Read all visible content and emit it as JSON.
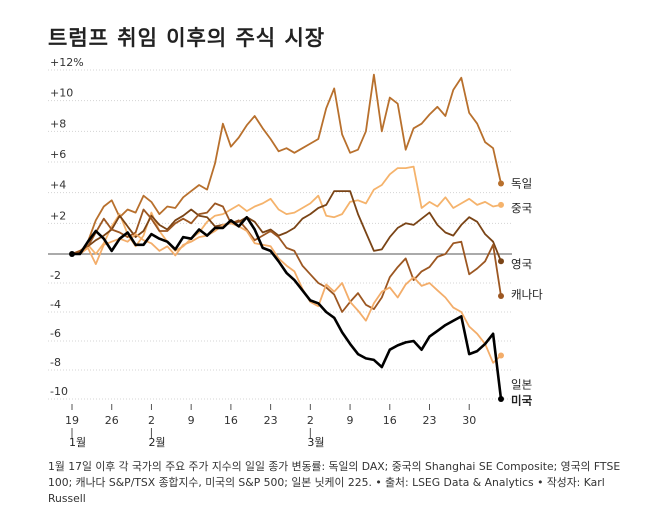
{
  "title": "트럼프 취임 이후의 주식 시장",
  "notes": "1월 17일 이후 각 국가의 주요 주가 지수의 일일 종가 변동률: 독일의 DAX; 중국의 Shanghai SE Composite; 영국의 FTSE 100; 캐나다 S&P/TSX 종합지수, 미국의 S&P 500; 일본 닛케이 225. • 출처: LSEG Data & Analytics • 작성자: Karl Russell",
  "chart_data": {
    "type": "line",
    "title": "트럼프 취임 이후의 주식 시장",
    "ylim": [
      -10,
      12
    ],
    "y_ticks": [
      {
        "v": 12,
        "label": "+12%"
      },
      {
        "v": 10,
        "label": "+10"
      },
      {
        "v": 8,
        "label": "+8"
      },
      {
        "v": 6,
        "label": "+6"
      },
      {
        "v": 4,
        "label": "+4"
      },
      {
        "v": 2,
        "label": "+2"
      },
      {
        "v": 0,
        "label": ""
      },
      {
        "v": -2,
        "label": "-2"
      },
      {
        "v": -4,
        "label": "-4"
      },
      {
        "v": -6,
        "label": "-6"
      },
      {
        "v": -8,
        "label": "-8"
      },
      {
        "v": -10,
        "label": "-10"
      }
    ],
    "x_ticks": [
      {
        "i": 0,
        "label": "19"
      },
      {
        "i": 5,
        "label": "26"
      },
      {
        "i": 10,
        "label": "2"
      },
      {
        "i": 15,
        "label": "9"
      },
      {
        "i": 20,
        "label": "16"
      },
      {
        "i": 25,
        "label": "23"
      },
      {
        "i": 30,
        "label": "2"
      },
      {
        "i": 35,
        "label": "9"
      },
      {
        "i": 40,
        "label": "16"
      },
      {
        "i": 45,
        "label": "23"
      },
      {
        "i": 50,
        "label": "30"
      }
    ],
    "month_labels": [
      {
        "i": 0,
        "label": "1월"
      },
      {
        "i": 10,
        "label": "2월"
      },
      {
        "i": 30,
        "label": "3월"
      }
    ],
    "x_count": 55,
    "series": [
      {
        "name": "독일",
        "color": "#b8702d",
        "end_value": 4.6,
        "values": [
          0,
          0,
          0.8,
          2.2,
          3.1,
          3.5,
          2.4,
          2.9,
          2.7,
          3.8,
          3.4,
          2.6,
          3.1,
          3.0,
          3.7,
          4.1,
          4.5,
          4.2,
          5.9,
          8.5,
          7.0,
          7.6,
          8.4,
          9.0,
          8.2,
          7.5,
          6.7,
          6.9,
          6.6,
          6.9,
          7.2,
          7.5,
          9.5,
          10.8,
          7.8,
          6.6,
          6.8,
          8.0,
          11.7,
          8.0,
          10.2,
          9.8,
          6.8,
          8.2,
          8.5,
          9.1,
          9.6,
          9.0,
          10.7,
          11.5,
          9.2,
          8.5,
          7.3,
          6.9,
          4.6
        ]
      },
      {
        "name": "중국",
        "color": "#f5b36c",
        "end_value": 3.2,
        "values": [
          0,
          0.2,
          0.6,
          0,
          0.7,
          1.8,
          2.6,
          1.3,
          0.5,
          1.2,
          2.7,
          1.5,
          0.8,
          0.2,
          0.5,
          1.0,
          1.4,
          2.1,
          2.5,
          2.6,
          2.9,
          3.2,
          2.8,
          3.1,
          3.3,
          3.6,
          2.9,
          2.6,
          2.7,
          3.0,
          3.3,
          3.8,
          2.5,
          2.4,
          2.6,
          3.4,
          3.5,
          3.3,
          4.2,
          4.5,
          5.2,
          5.6,
          5.6,
          5.7,
          3.0,
          3.4,
          3.1,
          3.7,
          3.0,
          3.3,
          3.6,
          3.2,
          3.4,
          3.1,
          3.2
        ]
      },
      {
        "name": "영국",
        "color": "#7a4416",
        "end_value": -0.5,
        "values": [
          0,
          0.1,
          0.5,
          0.9,
          1.2,
          1.6,
          2.5,
          1.8,
          1.1,
          1.5,
          2.5,
          1.9,
          1.6,
          2.2,
          2.5,
          2.9,
          2.5,
          2.4,
          1.8,
          1.9,
          2.0,
          2.1,
          2.4,
          2.1,
          1.4,
          1.6,
          1.2,
          1.4,
          1.7,
          2.3,
          2.6,
          3.0,
          3.2,
          4.1,
          4.1,
          4.1,
          2.6,
          1.4,
          0.2,
          0.3,
          1.1,
          1.7,
          2.0,
          1.9,
          2.3,
          2.7,
          1.9,
          1.4,
          1.2,
          1.9,
          2.4,
          2.1,
          1.3,
          0.8,
          -0.5
        ]
      },
      {
        "name": "캐나다",
        "color": "#9c5722",
        "end_value": -2.9,
        "values": [
          0,
          0.2,
          0.5,
          1.4,
          2.3,
          1.6,
          1.4,
          1.1,
          1.4,
          2.9,
          2.3,
          1.5,
          1.5,
          2.0,
          2.3,
          2.0,
          2.6,
          2.7,
          3.3,
          3.1,
          2.0,
          2.2,
          1.6,
          0.9,
          1.2,
          1.5,
          1.1,
          0.4,
          0.2,
          -0.8,
          -1.4,
          -2.0,
          -2.3,
          -2.8,
          -4.0,
          -3.3,
          -2.7,
          -3.5,
          -3.8,
          -3.0,
          -1.6,
          -0.9,
          -0.3,
          -1.8,
          -1.2,
          -0.9,
          -0.2,
          0,
          0.7,
          0.8,
          -1.4,
          -1.0,
          -0.5,
          0.6,
          -2.9
        ]
      },
      {
        "name": "일본",
        "color": "#f3ad6a",
        "end_value": -7.0,
        "values": [
          0,
          0,
          0.4,
          -0.7,
          0.6,
          0.8,
          1.0,
          0.8,
          1.3,
          0.9,
          0.7,
          0.2,
          0.5,
          -0.1,
          0.6,
          0.8,
          1.1,
          1.2,
          1.5,
          1.9,
          2.0,
          1.8,
          1.5,
          0.7,
          0.6,
          0.5,
          -0.3,
          -0.8,
          -1.2,
          -2.4,
          -3.3,
          -3.6,
          -2.1,
          -2.6,
          -2.0,
          -3.3,
          -3.9,
          -4.6,
          -3.4,
          -2.6,
          -2.3,
          -3.0,
          -2.1,
          -1.6,
          -2.2,
          -2.0,
          -2.5,
          -3.0,
          -3.7,
          -4.0,
          -5.0,
          -5.5,
          -6.2,
          -7.5,
          -7.0
        ]
      },
      {
        "name": "미국",
        "color": "#000000",
        "end_value": -10.0,
        "values": [
          0,
          0,
          0.8,
          1.5,
          1.0,
          0.2,
          1.0,
          1.4,
          0.6,
          0.6,
          1.3,
          1.0,
          0.8,
          0.3,
          1.1,
          1.0,
          1.6,
          1.2,
          1.7,
          1.7,
          2.2,
          1.8,
          2.4,
          1.6,
          0.4,
          0.2,
          -0.5,
          -1.3,
          -1.8,
          -2.5,
          -3.2,
          -3.4,
          -4.0,
          -4.4,
          -5.4,
          -6.2,
          -6.9,
          -7.2,
          -7.3,
          -7.8,
          -6.6,
          -6.3,
          -6.1,
          -6.0,
          -6.6,
          -5.7,
          -5.3,
          -4.9,
          -4.6,
          -4.3,
          -6.9,
          -6.7,
          -6.2,
          -5.5,
          -10.0
        ]
      }
    ],
    "end_labels": [
      {
        "series": "독일",
        "label": "독일",
        "label_value": 4.6,
        "bold": false
      },
      {
        "series": "중국",
        "label": "중국",
        "label_value": 3.0,
        "bold": false
      },
      {
        "series": "영국",
        "label": "영국",
        "label_value": -0.7,
        "bold": false
      },
      {
        "series": "캐나다",
        "label": "캐나다",
        "label_value": -2.8,
        "bold": false
      },
      {
        "series": "일본",
        "label": "일본",
        "label_value": -9.0,
        "bold": false
      },
      {
        "series": "미국",
        "label": "미국",
        "label_value": -10.1,
        "bold": true
      }
    ]
  }
}
